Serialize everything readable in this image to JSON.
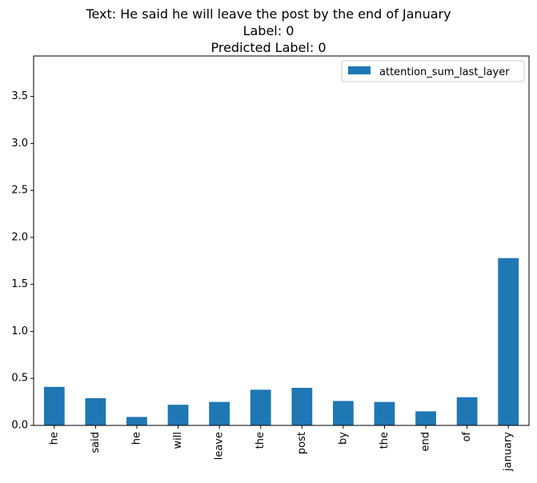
{
  "title": {
    "line1": "Text: He said he will leave the post by the end of January",
    "line2": "Label: 0",
    "line3": "Predicted Label: 0"
  },
  "chart_data": {
    "type": "bar",
    "categories": [
      "he",
      "said",
      "he",
      "will",
      "leave",
      "the",
      "post",
      "by",
      "the",
      "end",
      "of",
      "january"
    ],
    "series": [
      {
        "name": "attention_sum_last_layer",
        "values": [
          0.41,
          0.29,
          0.09,
          0.22,
          0.25,
          0.38,
          0.4,
          0.26,
          0.25,
          0.15,
          0.3,
          1.78
        ],
        "color": "#1f77b4"
      }
    ],
    "ylim": [
      0,
      3.93
    ],
    "yticks": [
      "0.0",
      "0.5",
      "1.0",
      "1.5",
      "2.0",
      "2.5",
      "3.0",
      "3.5"
    ],
    "grid": false,
    "legend": "top-right"
  }
}
